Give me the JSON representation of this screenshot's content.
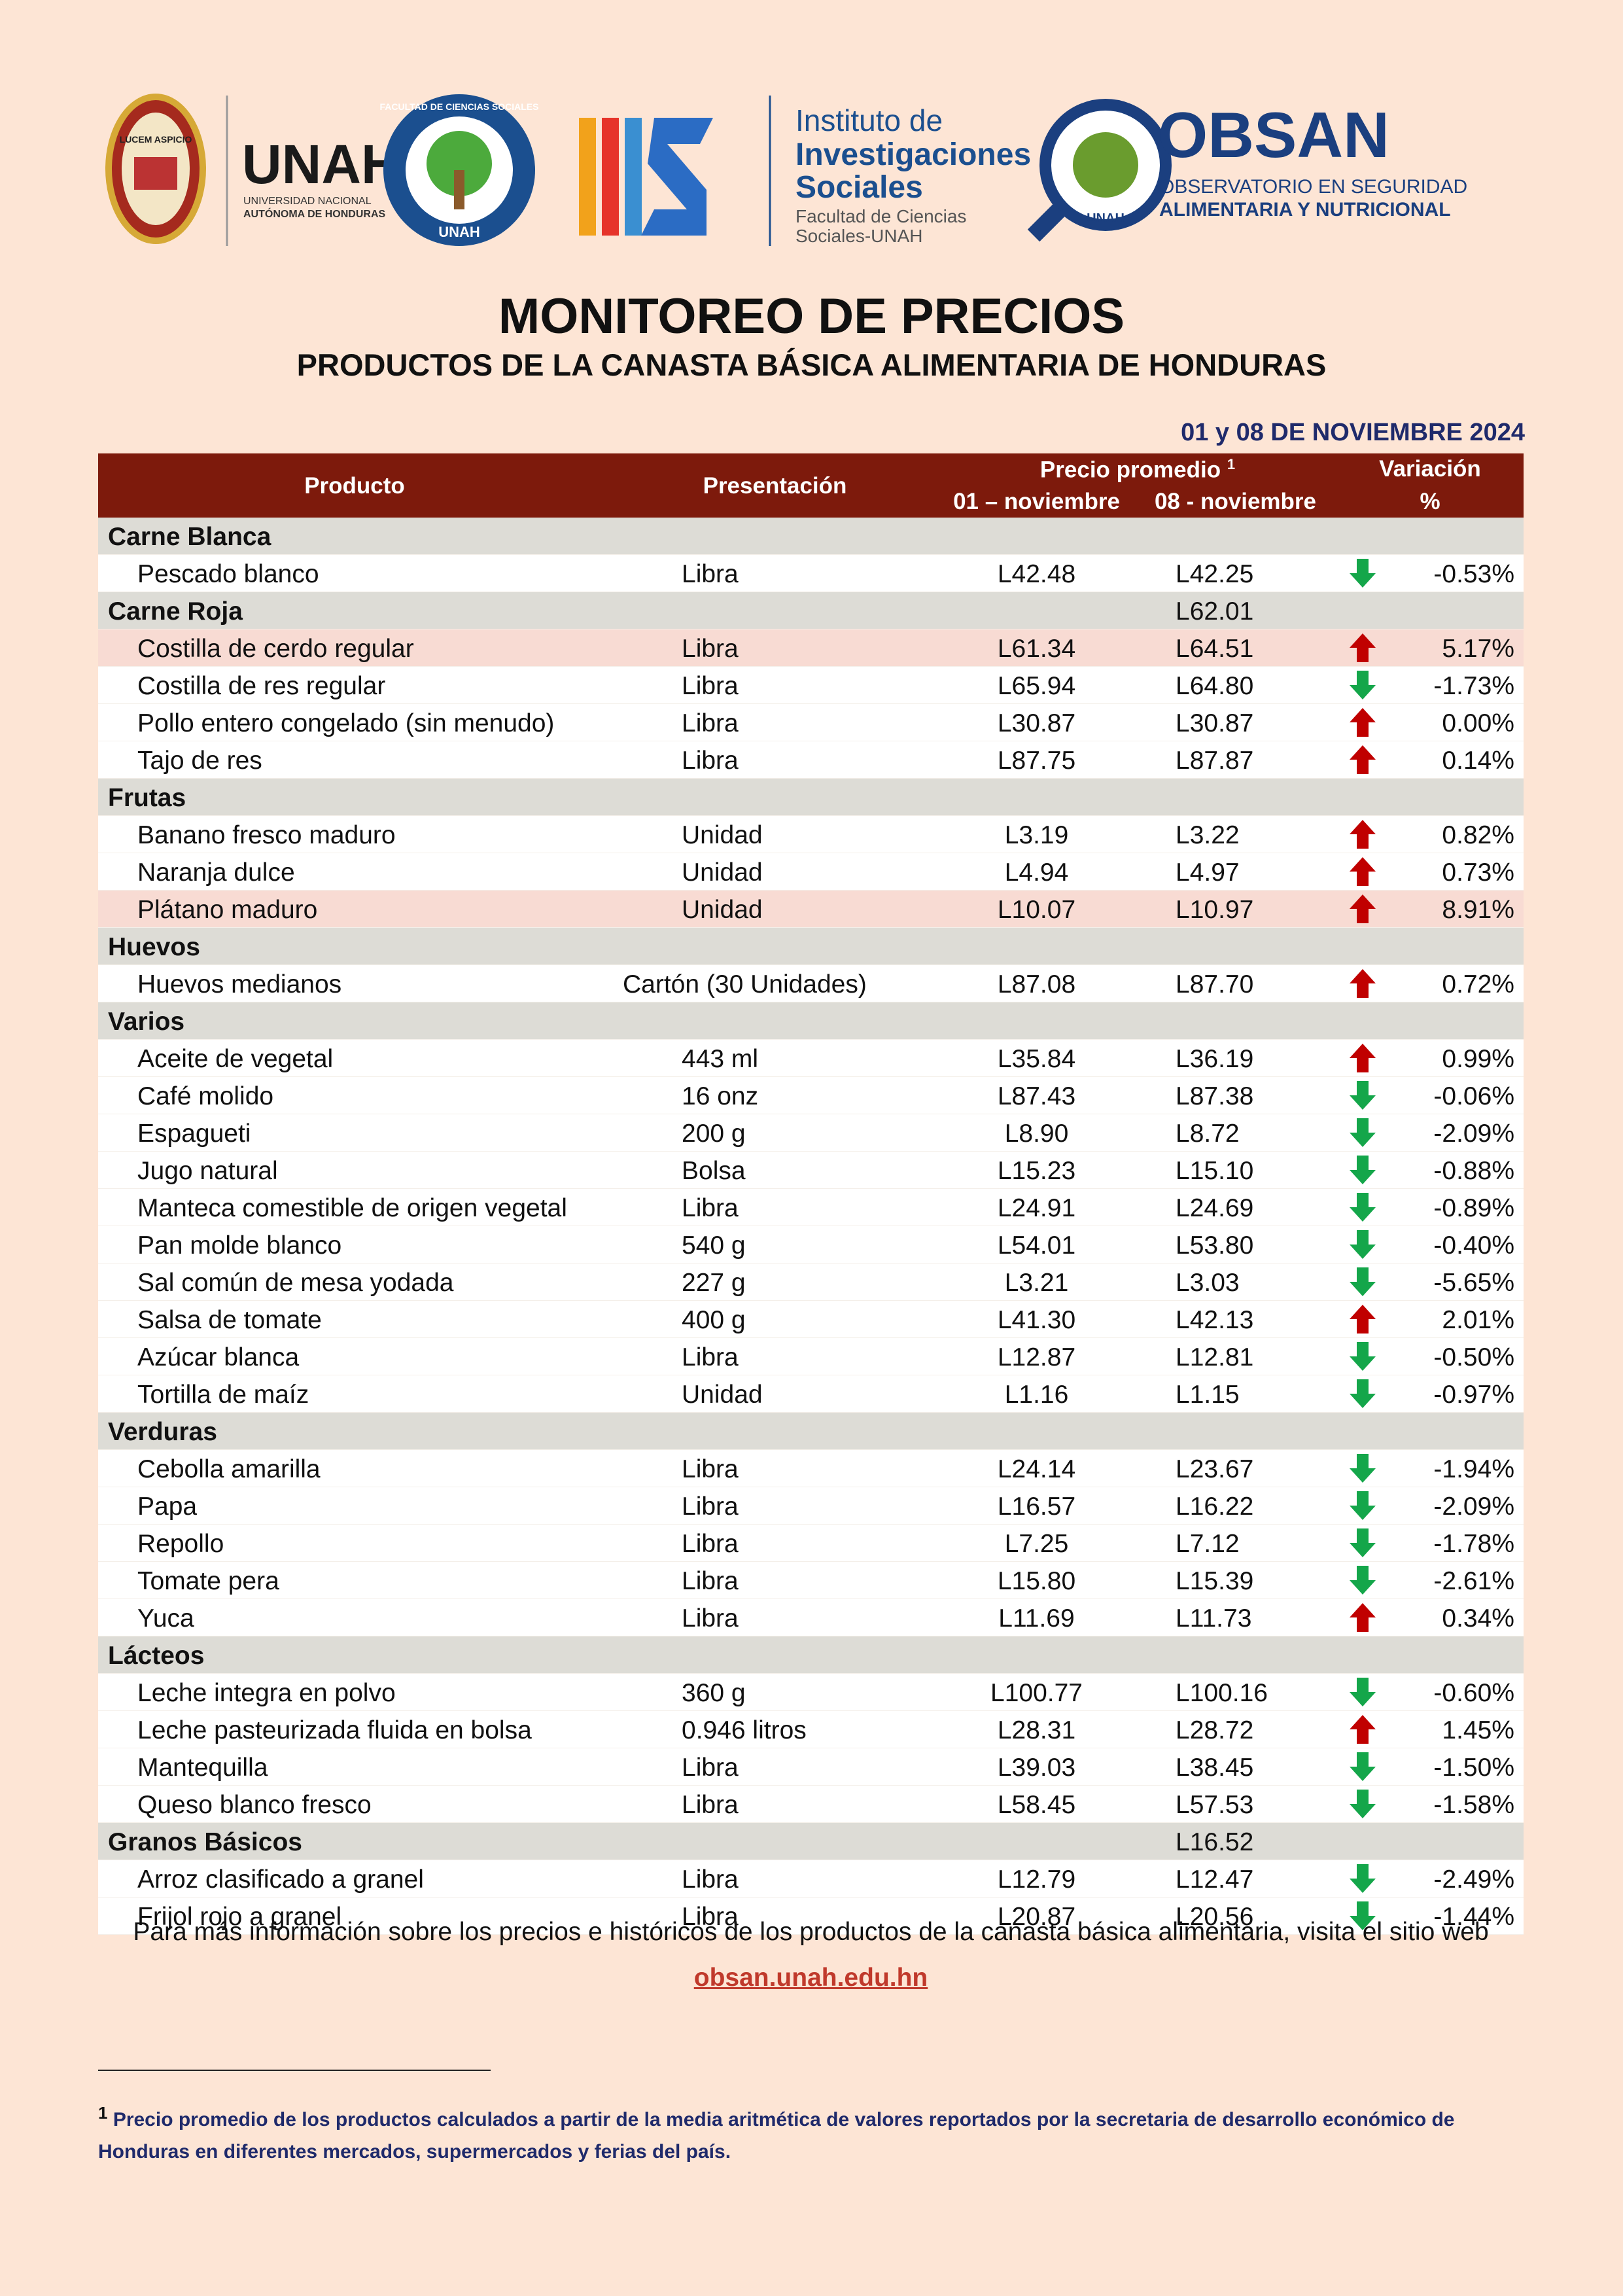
{
  "header": {
    "logos": {
      "unah_seal": "LUCEM ASPICIO",
      "unah": "UNAH",
      "unah_sub_1": "UNIVERSIDAD NACIONAL",
      "unah_sub_2": "AUTÓNOMA DE HONDURAS",
      "fcs_ring": "FACULTAD DE CIENCIAS SOCIALES",
      "fcs_unah": "UNAH",
      "iis_1": "Instituto de",
      "iis_2": "Investigaciones",
      "iis_3": "Sociales",
      "iis_4": "Facultad de Ciencias",
      "iis_5": "Sociales-UNAH",
      "obsan": "OBSAN",
      "obsan_sub_1": "OBSERVATORIO EN SEGURIDAD",
      "obsan_sub_2": "ALIMENTARIA Y NUTRICIONAL",
      "obsan_badge": "UNAH"
    },
    "title": "MONITOREO DE PRECIOS",
    "subtitle": "PRODUCTOS DE LA CANASTA BÁSICA ALIMENTARIA DE HONDURAS",
    "date": "01 y 08 DE NOVIEMBRE 2024"
  },
  "table": {
    "columns": {
      "product": "Producto",
      "presentation": "Presentación",
      "price": "Precio promedio",
      "price_note": "1",
      "price_1": "01 – noviembre",
      "price_2": "08 - noviembre",
      "variation": "Variación",
      "variation_unit": "%"
    },
    "groups": [
      {
        "name": "Carne Blanca",
        "rows": [
          {
            "product": "Pescado blanco",
            "presentation": "Libra",
            "price_1": "L42.48",
            "price_2": "L42.25",
            "trend": "down",
            "variation": "-0.53%"
          }
        ]
      },
      {
        "name": "Carne Roja",
        "value": "L62.01",
        "rows": [
          {
            "product": "Costilla de cerdo regular",
            "presentation": "Libra",
            "price_1": "L61.34",
            "price_2": "L64.51",
            "trend": "up",
            "variation": "5.17%",
            "highlight": true
          },
          {
            "product": "Costilla de res regular",
            "presentation": "Libra",
            "price_1": "L65.94",
            "price_2": "L64.80",
            "trend": "down",
            "variation": "-1.73%"
          },
          {
            "product": "Pollo entero congelado (sin menudo)",
            "presentation": "Libra",
            "price_1": "L30.87",
            "price_2": "L30.87",
            "trend": "up",
            "variation": "0.00%"
          },
          {
            "product": "Tajo de res",
            "presentation": "Libra",
            "price_1": "L87.75",
            "price_2": "L87.87",
            "trend": "up",
            "variation": "0.14%"
          }
        ]
      },
      {
        "name": "Frutas",
        "rows": [
          {
            "product": "Banano fresco maduro",
            "presentation": "Unidad",
            "price_1": "L3.19",
            "price_2": "L3.22",
            "trend": "up",
            "variation": "0.82%"
          },
          {
            "product": "Naranja dulce",
            "presentation": "Unidad",
            "price_1": "L4.94",
            "price_2": "L4.97",
            "trend": "up",
            "variation": "0.73%"
          },
          {
            "product": "Plátano maduro",
            "presentation": "Unidad",
            "price_1": "L10.07",
            "price_2": "L10.97",
            "trend": "up",
            "variation": "8.91%",
            "highlight": true
          }
        ]
      },
      {
        "name": "Huevos",
        "rows": [
          {
            "product": "Huevos medianos",
            "presentation": "Cartón (30 Unidades)",
            "price_1": "L87.08",
            "price_2": "L87.70",
            "trend": "up",
            "variation": "0.72%"
          }
        ]
      },
      {
        "name": "Varios",
        "rows": [
          {
            "product": "Aceite de vegetal",
            "presentation": "443 ml",
            "price_1": "L35.84",
            "price_2": "L36.19",
            "trend": "up",
            "variation": "0.99%"
          },
          {
            "product": "Café molido",
            "presentation": "16 onz",
            "price_1": "L87.43",
            "price_2": "L87.38",
            "trend": "down",
            "variation": "-0.06%"
          },
          {
            "product": "Espagueti",
            "presentation": "200 g",
            "price_1": "L8.90",
            "price_2": "L8.72",
            "trend": "down",
            "variation": "-2.09%"
          },
          {
            "product": "Jugo natural",
            "presentation": "Bolsa",
            "price_1": "L15.23",
            "price_2": "L15.10",
            "trend": "down",
            "variation": "-0.88%"
          },
          {
            "product": "Manteca comestible de origen vegetal",
            "presentation": "Libra",
            "price_1": "L24.91",
            "price_2": "L24.69",
            "trend": "down",
            "variation": "-0.89%"
          },
          {
            "product": "Pan molde blanco",
            "presentation": "540 g",
            "price_1": "L54.01",
            "price_2": "L53.80",
            "trend": "down",
            "variation": "-0.40%"
          },
          {
            "product": "Sal común de mesa yodada",
            "presentation": "227 g",
            "price_1": "L3.21",
            "price_2": "L3.03",
            "trend": "down",
            "variation": "-5.65%"
          },
          {
            "product": "Salsa de tomate",
            "presentation": "400 g",
            "price_1": "L41.30",
            "price_2": "L42.13",
            "trend": "up",
            "variation": "2.01%"
          },
          {
            "product": "Azúcar blanca",
            "presentation": "Libra",
            "price_1": "L12.87",
            "price_2": "L12.81",
            "trend": "down",
            "variation": "-0.50%"
          },
          {
            "product": "Tortilla de maíz",
            "presentation": "Unidad",
            "price_1": "L1.16",
            "price_2": "L1.15",
            "trend": "down",
            "variation": "-0.97%"
          }
        ]
      },
      {
        "name": "Verduras",
        "rows": [
          {
            "product": "Cebolla amarilla",
            "presentation": "Libra",
            "price_1": "L24.14",
            "price_2": "L23.67",
            "trend": "down",
            "variation": "-1.94%"
          },
          {
            "product": "Papa",
            "presentation": "Libra",
            "price_1": "L16.57",
            "price_2": "L16.22",
            "trend": "down",
            "variation": "-2.09%"
          },
          {
            "product": "Repollo",
            "presentation": "Libra",
            "price_1": "L7.25",
            "price_2": "L7.12",
            "trend": "down",
            "variation": "-1.78%"
          },
          {
            "product": "Tomate pera",
            "presentation": "Libra",
            "price_1": "L15.80",
            "price_2": "L15.39",
            "trend": "down",
            "variation": "-2.61%"
          },
          {
            "product": "Yuca",
            "presentation": "Libra",
            "price_1": "L11.69",
            "price_2": "L11.73",
            "trend": "up",
            "variation": "0.34%"
          }
        ]
      },
      {
        "name": "Lácteos",
        "rows": [
          {
            "product": "Leche integra en polvo",
            "presentation": "360 g",
            "price_1": "L100.77",
            "price_2": "L100.16",
            "trend": "down",
            "variation": "-0.60%"
          },
          {
            "product": "Leche pasteurizada fluida en bolsa",
            "presentation": "0.946 litros",
            "price_1": "L28.31",
            "price_2": "L28.72",
            "trend": "up",
            "variation": "1.45%"
          },
          {
            "product": "Mantequilla",
            "presentation": "Libra",
            "price_1": "L39.03",
            "price_2": "L38.45",
            "trend": "down",
            "variation": "-1.50%"
          },
          {
            "product": "Queso blanco fresco",
            "presentation": "Libra",
            "price_1": "L58.45",
            "price_2": "L57.53",
            "trend": "down",
            "variation": "-1.58%"
          }
        ]
      },
      {
        "name": "Granos Básicos",
        "value": "L16.52",
        "rows": [
          {
            "product": "Arroz clasificado a granel",
            "presentation": "Libra",
            "price_1": "L12.79",
            "price_2": "L12.47",
            "trend": "down",
            "variation": "-2.49%"
          },
          {
            "product": "Frijol rojo a granel",
            "presentation": "Libra",
            "price_1": "L20.87",
            "price_2": "L20.56",
            "trend": "down",
            "variation": "-1.44%"
          }
        ]
      }
    ]
  },
  "footer": {
    "text": "Para más información sobre los precios e históricos de los productos de la canasta básica alimentaria, visita el sitio web",
    "link": "obsan.unah.edu.hn"
  },
  "footnote": {
    "marker": "1",
    "text": "Precio promedio de los productos calculados a partir de la media aritmética de valores reportados por la secretaria de desarrollo económico de Honduras en diferentes mercados, supermercados y ferias del país."
  }
}
